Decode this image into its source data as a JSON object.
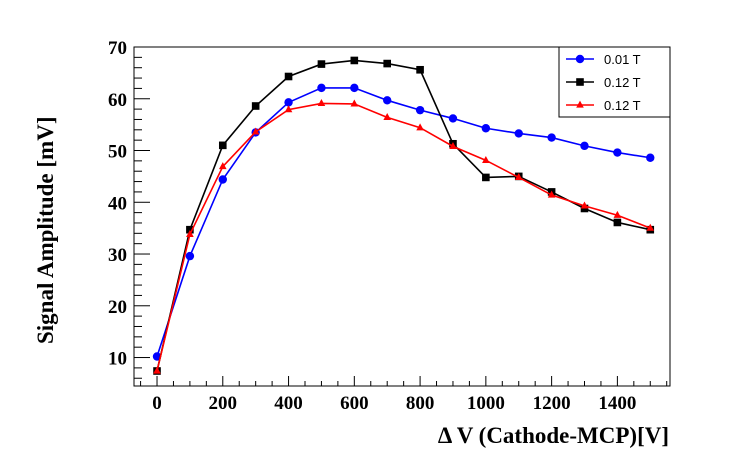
{
  "chart_data": {
    "type": "line",
    "title": "",
    "xlabel": "Δ V (Cathode-MCP)[V]",
    "ylabel": "Signal Amplitude [mV]",
    "xlim": [
      -70,
      1560
    ],
    "ylim": [
      4.5,
      70
    ],
    "x_ticks": [
      0,
      200,
      400,
      600,
      800,
      1000,
      1200,
      1400
    ],
    "y_ticks": [
      10,
      20,
      30,
      40,
      50,
      60,
      70
    ],
    "grid": false,
    "legend_position": "top-right",
    "x": [
      0,
      100,
      200,
      300,
      400,
      500,
      600,
      700,
      800,
      900,
      1000,
      1100,
      1200,
      1300,
      1400,
      1500
    ],
    "series": [
      {
        "name": "0.01 T",
        "color": "#0000ff",
        "marker": "circle",
        "values": [
          10.2,
          29.6,
          44.4,
          53.5,
          59.3,
          62.1,
          62.1,
          59.7,
          57.8,
          56.2,
          54.3,
          53.3,
          52.5,
          50.9,
          49.6,
          48.6
        ]
      },
      {
        "name": "0.12 T",
        "color": "#000000",
        "marker": "square",
        "values": [
          7.4,
          34.7,
          51.0,
          58.6,
          64.3,
          66.7,
          67.4,
          66.8,
          65.6,
          51.3,
          44.8,
          45.0,
          42.0,
          38.8,
          36.1,
          34.7
        ]
      },
      {
        "name": "0.12 T",
        "color": "#ff0000",
        "marker": "triangle",
        "values": [
          7.4,
          33.8,
          46.9,
          53.6,
          57.9,
          59.1,
          59.0,
          56.4,
          54.4,
          50.8,
          48.1,
          44.8,
          41.4,
          39.3,
          37.5,
          35.0
        ]
      }
    ]
  }
}
